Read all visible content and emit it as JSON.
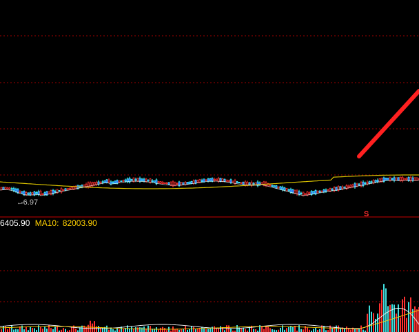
{
  "colors": {
    "background": "#000000",
    "grid": "#a00000",
    "divider": "#c80000",
    "up_candle": "#ff3030",
    "down_candle": "#40ffff",
    "down_fill": "#2020ff",
    "ma_slow": "#d8c000",
    "ma_fast": "#ffffff",
    "annotation_arrow": "#ff2020",
    "volume_up": "#ff3030",
    "volume_down": "#40e0e0",
    "ma5_text": "#ffffff",
    "ma10_text": "#ffd000"
  },
  "price_panel": {
    "low_marker": "-6.97",
    "signal_marker": "S"
  },
  "volume_panel": {
    "ma5_partial": "6405.90",
    "ma10_label": "MA10:",
    "ma10_value": "82003.90"
  },
  "icons": {
    "annotation": "trend-arrow-icon"
  }
}
